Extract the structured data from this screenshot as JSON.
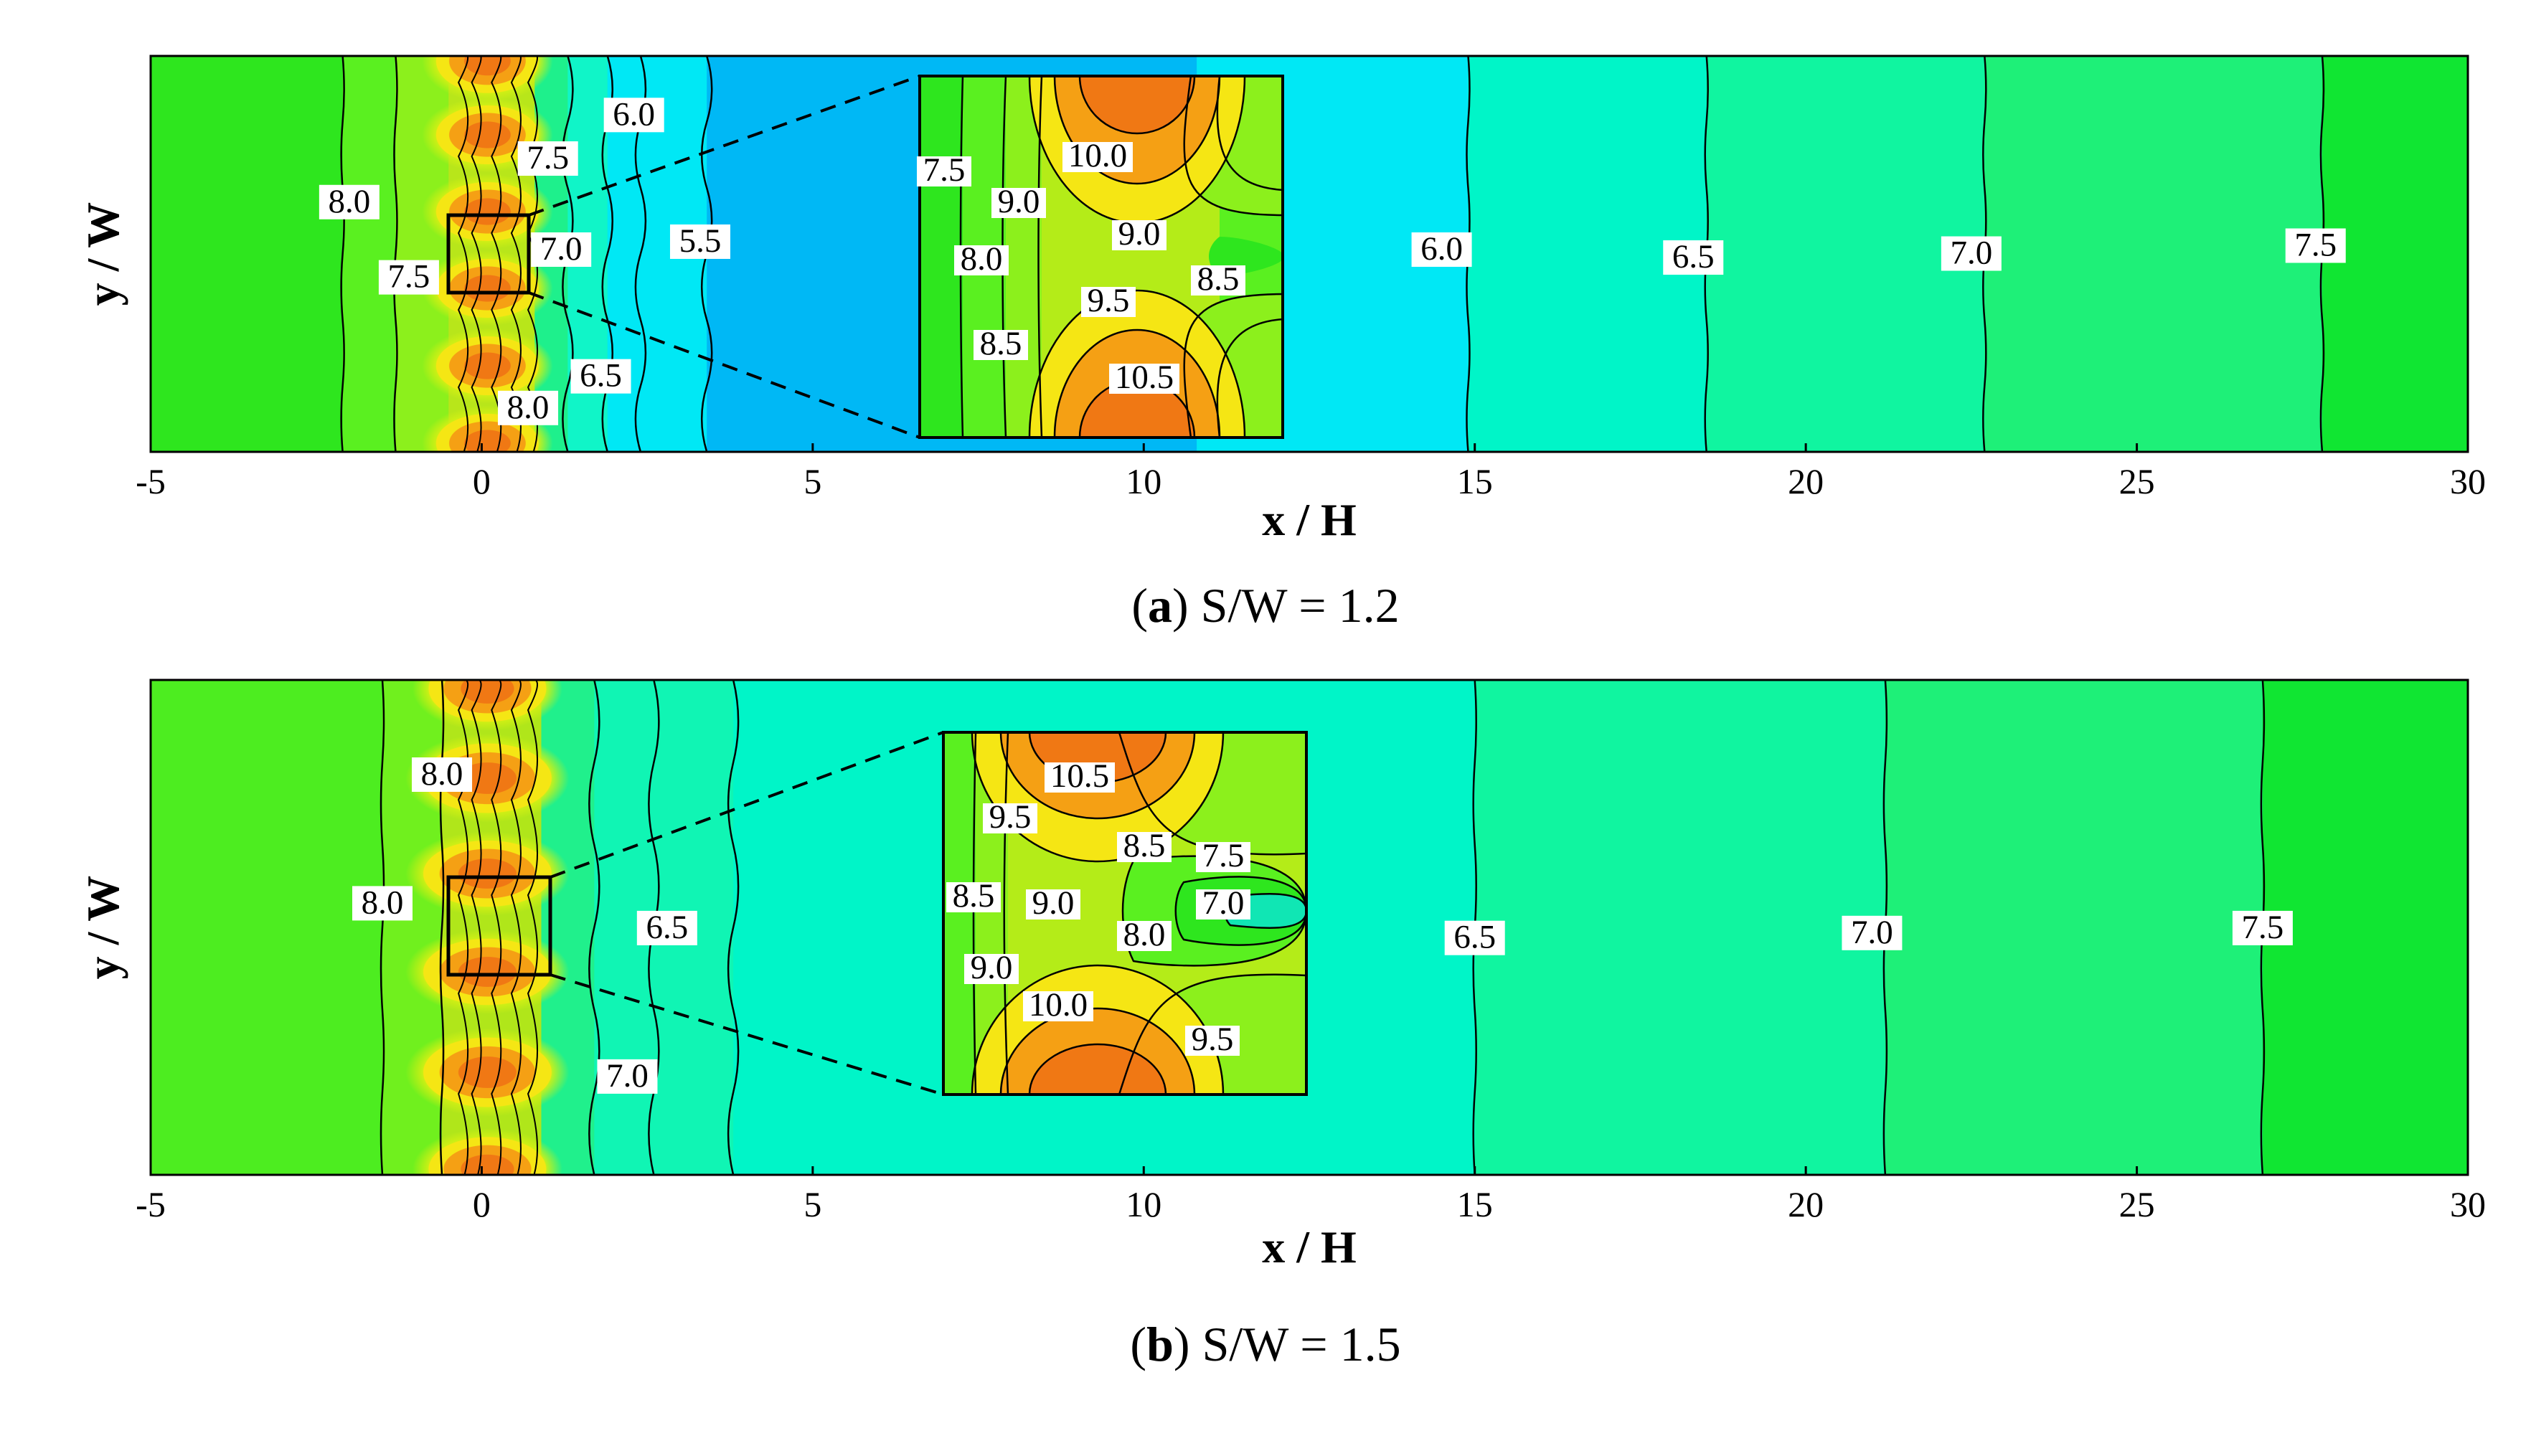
{
  "chart_data": [
    {
      "type": "contour",
      "caption_letter": "a",
      "caption_text": "S/W = 1.2",
      "xlabel": "x / H",
      "ylabel": "y / W",
      "xlim": [
        -5,
        30
      ],
      "xticks": [
        "-5",
        "0",
        "5",
        "10",
        "15",
        "20",
        "25",
        "30"
      ],
      "bands": [
        {
          "x0": -5,
          "x1": -2.1,
          "color": "#2ee61e"
        },
        {
          "x0": -2.1,
          "x1": -1.3,
          "color": "#5af020"
        },
        {
          "x0": -1.3,
          "x1": -0.5,
          "color": "#8cf01c"
        },
        {
          "x0": -0.5,
          "x1": 0.8,
          "color": "#b8e61a"
        },
        {
          "x0": 0.8,
          "x1": 1.3,
          "color": "#1ef08c"
        },
        {
          "x0": 1.3,
          "x1": 1.9,
          "color": "#10f5c8"
        },
        {
          "x0": 1.9,
          "x1": 3.4,
          "color": "#00e8f5"
        },
        {
          "x0": 3.4,
          "x1": 14.9,
          "color": "#00b8f5"
        },
        {
          "x0": 10.8,
          "x1": 14.9,
          "color": "#00e8f5"
        },
        {
          "x0": 14.9,
          "x1": 18.5,
          "color": "#00f5c8"
        },
        {
          "x0": 18.5,
          "x1": 22.7,
          "color": "#10f5a0"
        },
        {
          "x0": 22.7,
          "x1": 27.8,
          "color": "#1ef078"
        },
        {
          "x0": 27.8,
          "x1": 30,
          "color": "#10e632"
        }
      ],
      "contour_lines": [
        -2.1,
        -1.3,
        1.3,
        1.9,
        2.4,
        3.4,
        14.9,
        18.5,
        22.7,
        27.8
      ],
      "labels": [
        {
          "text": "8.0",
          "x": -2.0,
          "y": 0.62
        },
        {
          "text": "7.5",
          "x": -1.1,
          "y": 0.43
        },
        {
          "text": "7.5",
          "x": 1.0,
          "y": 0.73
        },
        {
          "text": "6.0",
          "x": 2.3,
          "y": 0.84
        },
        {
          "text": "7.0",
          "x": 1.2,
          "y": 0.5
        },
        {
          "text": "5.5",
          "x": 3.3,
          "y": 0.52
        },
        {
          "text": "6.5",
          "x": 1.8,
          "y": 0.18
        },
        {
          "text": "8.0",
          "x": 0.7,
          "y": 0.1
        },
        {
          "text": "6.0",
          "x": 14.5,
          "y": 0.5
        },
        {
          "text": "6.5",
          "x": 18.3,
          "y": 0.48
        },
        {
          "text": "7.0",
          "x": 22.5,
          "y": 0.49
        },
        {
          "text": "7.5",
          "x": 27.7,
          "y": 0.51
        }
      ],
      "inset": {
        "labels": [
          "7.5",
          "10.0",
          "9.0",
          "8.0",
          "9.0",
          "8.5",
          "9.5",
          "8.5",
          "10.5"
        ]
      }
    },
    {
      "type": "contour",
      "caption_letter": "b",
      "caption_text": "S/W = 1.5",
      "xlabel": "x / H",
      "ylabel": "y / W",
      "xlim": [
        -5,
        30
      ],
      "xticks": [
        "-5",
        "0",
        "5",
        "10",
        "15",
        "20",
        "25",
        "30"
      ],
      "bands": [
        {
          "x0": -5,
          "x1": -1.5,
          "color": "#4ded20"
        },
        {
          "x0": -1.5,
          "x1": -0.6,
          "color": "#70f01e"
        },
        {
          "x0": -0.6,
          "x1": 0.9,
          "color": "#b0e61a"
        },
        {
          "x0": 0.9,
          "x1": 1.7,
          "color": "#20f08c"
        },
        {
          "x0": 1.7,
          "x1": 3.8,
          "color": "#10f5b4"
        },
        {
          "x0": 3.8,
          "x1": 15.0,
          "color": "#00f5c8"
        },
        {
          "x0": 15.0,
          "x1": 21.2,
          "color": "#10f5a0"
        },
        {
          "x0": 21.2,
          "x1": 26.9,
          "color": "#1ef078"
        },
        {
          "x0": 26.9,
          "x1": 30,
          "color": "#10e632"
        }
      ],
      "contour_lines": [
        -1.5,
        -0.6,
        1.7,
        2.6,
        3.8,
        15.0,
        21.2,
        26.9
      ],
      "labels": [
        {
          "text": "8.0",
          "x": -0.6,
          "y": 0.8
        },
        {
          "text": "8.0",
          "x": -1.5,
          "y": 0.54
        },
        {
          "text": "6.5",
          "x": 2.8,
          "y": 0.49
        },
        {
          "text": "7.0",
          "x": 2.2,
          "y": 0.19
        },
        {
          "text": "6.5",
          "x": 15.0,
          "y": 0.47
        },
        {
          "text": "7.0",
          "x": 21.0,
          "y": 0.48
        },
        {
          "text": "7.5",
          "x": 26.9,
          "y": 0.49
        }
      ],
      "inset": {
        "labels": [
          "10.5",
          "9.5",
          "8.5",
          "7.5",
          "8.5",
          "9.0",
          "7.0",
          "8.0",
          "9.0",
          "10.0",
          "9.5"
        ]
      }
    }
  ]
}
